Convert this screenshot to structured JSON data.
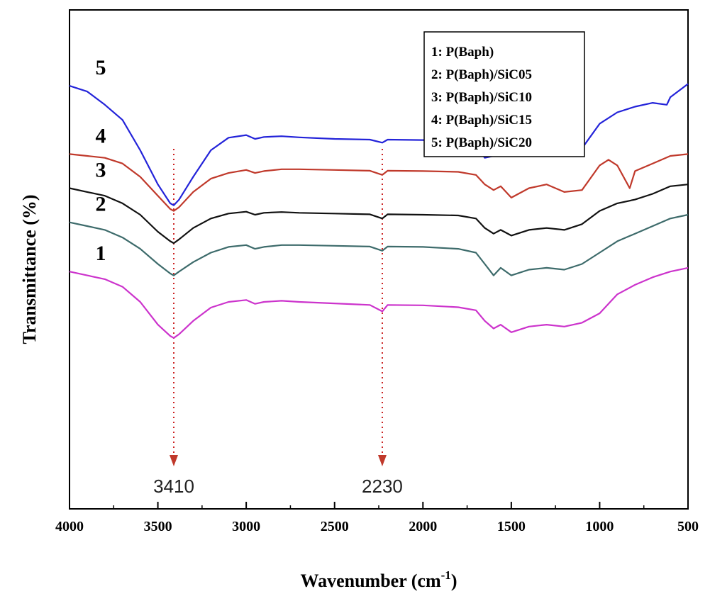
{
  "chart_data": {
    "type": "line",
    "title": "",
    "xlabel_main": "Wavenumber (cm",
    "xlabel_sup": "-1",
    "xlabel_close": ")",
    "ylabel": "Transmittance (%)",
    "xlim": [
      4000,
      500
    ],
    "x_reversed": true,
    "x_ticks": [
      4000,
      3500,
      3000,
      2500,
      2000,
      1500,
      1000,
      500
    ],
    "y_ticks_shown": false,
    "grid": false,
    "legend": {
      "position": "top-right",
      "entries": [
        "1: P(Baph)",
        "2: P(Baph)/SiC05",
        "3: P(Baph)/SiC10",
        "4: P(Baph)/SiC15",
        "5: P(Baph)/SiC20"
      ]
    },
    "markers": [
      {
        "x": 3410,
        "label": "3410"
      },
      {
        "x": 2230,
        "label": "2230"
      }
    ],
    "series": [
      {
        "name": "1: P(Baph)",
        "label": "1",
        "color": "#cc33cc",
        "points": [
          [
            4000,
            48
          ],
          [
            3900,
            47
          ],
          [
            3800,
            46
          ],
          [
            3700,
            44
          ],
          [
            3600,
            40
          ],
          [
            3500,
            34
          ],
          [
            3430,
            31
          ],
          [
            3410,
            30.5
          ],
          [
            3380,
            31.5
          ],
          [
            3300,
            35
          ],
          [
            3200,
            38.5
          ],
          [
            3100,
            40
          ],
          [
            3000,
            40.5
          ],
          [
            2950,
            39.5
          ],
          [
            2900,
            40
          ],
          [
            2800,
            40.3
          ],
          [
            2700,
            40
          ],
          [
            2500,
            39.6
          ],
          [
            2300,
            39.2
          ],
          [
            2230,
            37.5
          ],
          [
            2200,
            39.2
          ],
          [
            2000,
            39.1
          ],
          [
            1800,
            38.6
          ],
          [
            1700,
            37.8
          ],
          [
            1650,
            35
          ],
          [
            1600,
            33
          ],
          [
            1560,
            34
          ],
          [
            1500,
            32
          ],
          [
            1400,
            33.5
          ],
          [
            1300,
            34
          ],
          [
            1200,
            33.5
          ],
          [
            1100,
            34.5
          ],
          [
            1000,
            37
          ],
          [
            900,
            42
          ],
          [
            800,
            44.5
          ],
          [
            700,
            46.5
          ],
          [
            600,
            48
          ],
          [
            500,
            49
          ]
        ]
      },
      {
        "name": "2: P(Baph)/SiC05",
        "label": "2",
        "color": "#3d6b6b",
        "points": [
          [
            4000,
            61
          ],
          [
            3900,
            60
          ],
          [
            3800,
            59
          ],
          [
            3700,
            57
          ],
          [
            3600,
            54
          ],
          [
            3500,
            50
          ],
          [
            3430,
            47.5
          ],
          [
            3410,
            47
          ],
          [
            3380,
            48
          ],
          [
            3300,
            50.5
          ],
          [
            3200,
            53
          ],
          [
            3100,
            54.5
          ],
          [
            3000,
            55
          ],
          [
            2950,
            54
          ],
          [
            2900,
            54.5
          ],
          [
            2800,
            55
          ],
          [
            2700,
            55
          ],
          [
            2500,
            54.8
          ],
          [
            2300,
            54.6
          ],
          [
            2230,
            53.5
          ],
          [
            2200,
            54.6
          ],
          [
            2000,
            54.5
          ],
          [
            1800,
            54
          ],
          [
            1700,
            53
          ],
          [
            1650,
            50
          ],
          [
            1600,
            47
          ],
          [
            1560,
            49
          ],
          [
            1500,
            47
          ],
          [
            1400,
            48.5
          ],
          [
            1300,
            49
          ],
          [
            1200,
            48.5
          ],
          [
            1100,
            50
          ],
          [
            1000,
            53
          ],
          [
            900,
            56
          ],
          [
            800,
            58
          ],
          [
            700,
            60
          ],
          [
            600,
            62
          ],
          [
            500,
            63
          ]
        ]
      },
      {
        "name": "3: P(Baph)/SiC10",
        "label": "3",
        "color": "#111111",
        "points": [
          [
            4000,
            70
          ],
          [
            3900,
            69
          ],
          [
            3800,
            68
          ],
          [
            3700,
            66
          ],
          [
            3600,
            63
          ],
          [
            3500,
            58.5
          ],
          [
            3430,
            56
          ],
          [
            3410,
            55.5
          ],
          [
            3380,
            56.5
          ],
          [
            3300,
            59.5
          ],
          [
            3200,
            62
          ],
          [
            3100,
            63.3
          ],
          [
            3000,
            63.8
          ],
          [
            2950,
            63
          ],
          [
            2900,
            63.5
          ],
          [
            2800,
            63.7
          ],
          [
            2700,
            63.5
          ],
          [
            2500,
            63.3
          ],
          [
            2300,
            63.1
          ],
          [
            2230,
            62
          ],
          [
            2200,
            63.1
          ],
          [
            2000,
            63
          ],
          [
            1800,
            62.8
          ],
          [
            1700,
            62
          ],
          [
            1650,
            59.5
          ],
          [
            1600,
            58
          ],
          [
            1560,
            59
          ],
          [
            1500,
            57.5
          ],
          [
            1400,
            59
          ],
          [
            1300,
            59.5
          ],
          [
            1200,
            59
          ],
          [
            1100,
            60.5
          ],
          [
            1000,
            64
          ],
          [
            900,
            66
          ],
          [
            800,
            67
          ],
          [
            700,
            68.5
          ],
          [
            600,
            70.5
          ],
          [
            500,
            71
          ]
        ]
      },
      {
        "name": "4: P(Baph)/SiC15",
        "label": "4",
        "color": "#c0392b",
        "points": [
          [
            4000,
            79
          ],
          [
            3900,
            78.5
          ],
          [
            3800,
            78
          ],
          [
            3700,
            76.5
          ],
          [
            3600,
            73
          ],
          [
            3500,
            68
          ],
          [
            3430,
            64.5
          ],
          [
            3410,
            64
          ],
          [
            3380,
            65
          ],
          [
            3300,
            69
          ],
          [
            3200,
            72.5
          ],
          [
            3100,
            74
          ],
          [
            3000,
            74.8
          ],
          [
            2950,
            74
          ],
          [
            2900,
            74.5
          ],
          [
            2800,
            75
          ],
          [
            2700,
            75
          ],
          [
            2500,
            74.8
          ],
          [
            2300,
            74.6
          ],
          [
            2230,
            73.5
          ],
          [
            2200,
            74.6
          ],
          [
            2000,
            74.5
          ],
          [
            1800,
            74.3
          ],
          [
            1700,
            73.5
          ],
          [
            1650,
            71
          ],
          [
            1600,
            69.5
          ],
          [
            1560,
            70.5
          ],
          [
            1500,
            67.5
          ],
          [
            1400,
            70
          ],
          [
            1300,
            71
          ],
          [
            1200,
            69
          ],
          [
            1100,
            69.5
          ],
          [
            1000,
            76
          ],
          [
            950,
            77.5
          ],
          [
            900,
            76
          ],
          [
            830,
            70
          ],
          [
            800,
            74.5
          ],
          [
            700,
            76.5
          ],
          [
            600,
            78.5
          ],
          [
            500,
            79
          ]
        ]
      },
      {
        "name": "5: P(Baph)/SiC20",
        "label": "5",
        "color": "#2323d9",
        "points": [
          [
            4000,
            97
          ],
          [
            3900,
            95.5
          ],
          [
            3800,
            92
          ],
          [
            3700,
            88
          ],
          [
            3600,
            80
          ],
          [
            3500,
            71
          ],
          [
            3430,
            66
          ],
          [
            3410,
            65.5
          ],
          [
            3380,
            67
          ],
          [
            3300,
            73
          ],
          [
            3200,
            80
          ],
          [
            3100,
            83.3
          ],
          [
            3000,
            84
          ],
          [
            2950,
            83
          ],
          [
            2900,
            83.5
          ],
          [
            2800,
            83.7
          ],
          [
            2700,
            83.4
          ],
          [
            2500,
            83
          ],
          [
            2300,
            82.8
          ],
          [
            2230,
            82
          ],
          [
            2200,
            82.8
          ],
          [
            2000,
            82.7
          ],
          [
            1800,
            82.3
          ],
          [
            1700,
            81
          ],
          [
            1650,
            78
          ],
          [
            1600,
            78.5
          ],
          [
            1560,
            81
          ],
          [
            1500,
            79
          ],
          [
            1400,
            80
          ],
          [
            1300,
            80.5
          ],
          [
            1200,
            79.5
          ],
          [
            1100,
            80.5
          ],
          [
            1000,
            87
          ],
          [
            900,
            90
          ],
          [
            800,
            91.5
          ],
          [
            700,
            92.5
          ],
          [
            620,
            92
          ],
          [
            600,
            94
          ],
          [
            500,
            97.5
          ]
        ]
      }
    ]
  }
}
